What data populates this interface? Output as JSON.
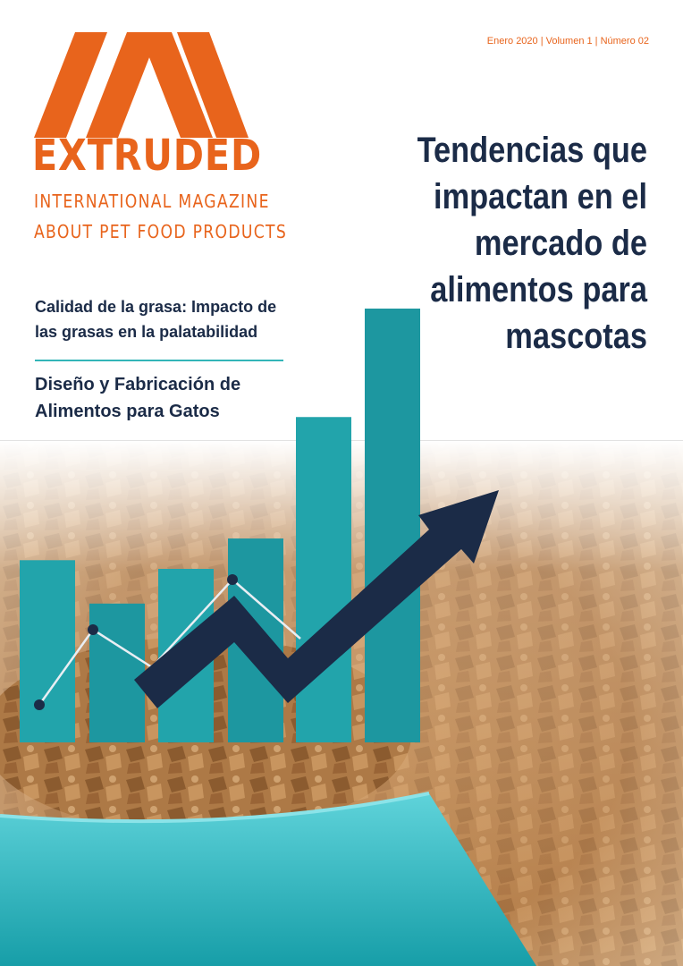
{
  "brand": {
    "name": "EXTRUDED",
    "tagline_line1": "INTERNATIONAL MAGAZINE",
    "tagline_line2": "ABOUT PET FOOD PRODUCTS",
    "color": "#e8641c"
  },
  "issue": "Enero 2020 | Volumen 1 | Número 02",
  "headline": "Tendencias que impactan en el mercado de alimentos para mascotas",
  "articles": [
    "Calidad de la grasa: Impacto de las grasas en la palatabilidad",
    "Diseño y Fabricación de Alimentos para Gatos"
  ],
  "colors": {
    "navy": "#1b2b47",
    "teal": "#1f9fa6",
    "bowl": "#2ab6bf",
    "kibble": "#b9834d"
  },
  "illustration": {
    "description_icons": [
      "bar-chart",
      "trend-arrow",
      "pet-food-bowl",
      "kibble"
    ],
    "bar_levels": [
      0.42,
      0.32,
      0.4,
      0.47,
      0.75,
      1.0
    ]
  }
}
